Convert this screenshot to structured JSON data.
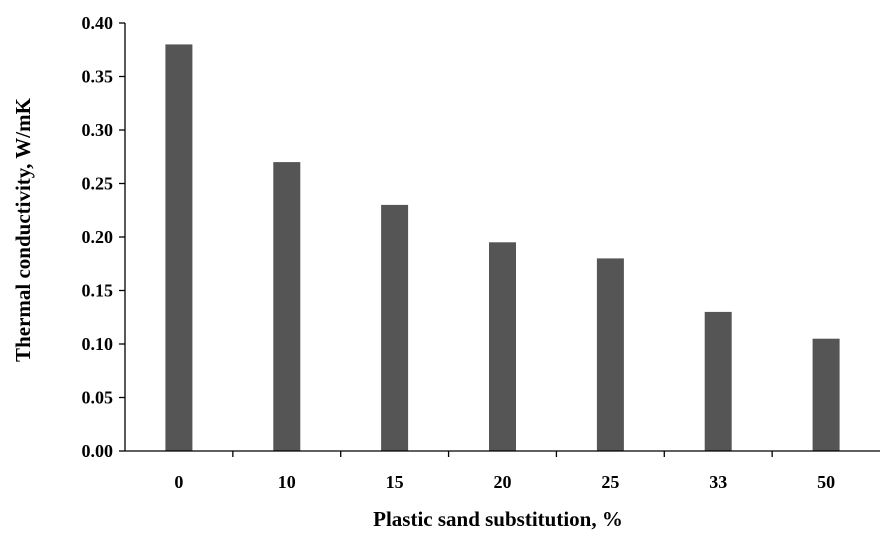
{
  "chart_data": {
    "type": "bar",
    "title": "",
    "xlabel": "Plastic sand substitution, %",
    "ylabel": "Thermal conductivity, W/mK",
    "categories": [
      "0",
      "10",
      "15",
      "20",
      "25",
      "33",
      "50"
    ],
    "values": [
      0.38,
      0.27,
      0.23,
      0.195,
      0.18,
      0.13,
      0.105
    ],
    "yticks": [
      "0.00",
      "0.05",
      "0.10",
      "0.15",
      "0.20",
      "0.25",
      "0.30",
      "0.35",
      "0.40"
    ],
    "ylim": [
      0,
      0.4
    ],
    "grid": false,
    "legend": "none",
    "bar_color": "#555555"
  }
}
